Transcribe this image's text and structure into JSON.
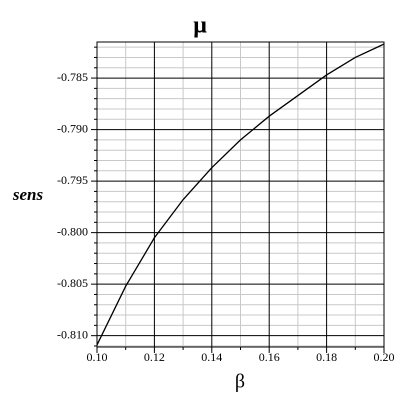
{
  "chart_data": {
    "type": "line",
    "title": "μ",
    "ylabel": "sens",
    "xlabel": "β",
    "x": [
      0.1,
      0.11,
      0.12,
      0.13,
      0.14,
      0.15,
      0.16,
      0.17,
      0.18,
      0.19,
      0.2
    ],
    "series": [
      {
        "color": "#000000",
        "values": [
          -0.8109,
          -0.8052,
          -0.8005,
          -0.7968,
          -0.7937,
          -0.791,
          -0.7887,
          -0.7867,
          -0.7847,
          -0.783,
          -0.7817
        ]
      }
    ],
    "xlim": [
      0.1,
      0.2
    ],
    "ylim": [
      -0.8111,
      -0.7815
    ],
    "xticks": [
      {
        "value": 0.1,
        "label": "0.10"
      },
      {
        "value": 0.12,
        "label": "0.12"
      },
      {
        "value": 0.14,
        "label": "0.14"
      },
      {
        "value": 0.16,
        "label": "0.16"
      },
      {
        "value": 0.18,
        "label": "0.18"
      },
      {
        "value": 0.2,
        "label": "0.20"
      }
    ],
    "yticks": [
      {
        "value": -0.81,
        "label": "-0.810"
      },
      -0.805,
      {
        "value": -0.8,
        "label": "-0.800"
      },
      -0.795,
      {
        "value": -0.79,
        "label": "-0.790"
      },
      -0.785
    ],
    "xminorticks": [
      0.11,
      0.13,
      0.15,
      0.17,
      0.19
    ],
    "yminorticks": [
      -0.811,
      -0.809,
      -0.808,
      -0.807,
      -0.806,
      -0.804,
      -0.803,
      -0.802,
      -0.801,
      -0.799,
      -0.798,
      -0.797,
      -0.796,
      -0.794,
      -0.793,
      -0.792,
      -0.791,
      -0.789,
      -0.788,
      -0.787,
      -0.786,
      -0.784,
      -0.783,
      -0.782
    ],
    "grid": true
  }
}
